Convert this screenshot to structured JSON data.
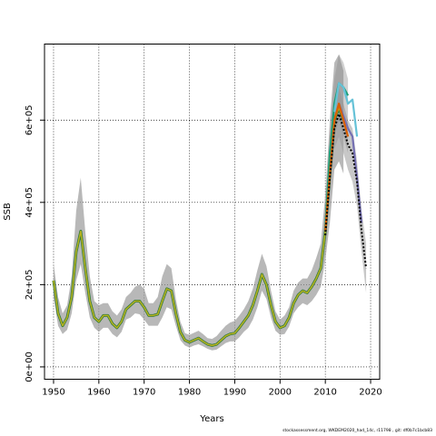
{
  "chart_data": {
    "type": "line",
    "xlabel": "Years",
    "ylabel": "SSB",
    "xlim": [
      1948,
      2022
    ],
    "ylim": [
      -30000,
      785000
    ],
    "x_ticks": [
      1950,
      1960,
      1970,
      1980,
      1990,
      2000,
      2010,
      2020
    ],
    "y_ticks": [
      0,
      200000,
      400000,
      600000
    ],
    "y_tick_labels": [
      "0e+00",
      "2e+05",
      "4e+05",
      "6e+05"
    ],
    "grid": true,
    "legend": "none",
    "base_run": {
      "x": [
        1950,
        1951,
        1952,
        1953,
        1954,
        1955,
        1956,
        1957,
        1958,
        1959,
        1960,
        1961,
        1962,
        1963,
        1964,
        1965,
        1966,
        1967,
        1968,
        1969,
        1970,
        1971,
        1972,
        1973,
        1974,
        1975,
        1976,
        1977,
        1978,
        1979,
        1980,
        1981,
        1982,
        1983,
        1984,
        1985,
        1986,
        1987,
        1988,
        1989,
        1990,
        1991,
        1992,
        1993,
        1994,
        1995,
        1996,
        1997,
        1998,
        1999,
        2000,
        2001,
        2002,
        2003,
        2004,
        2005,
        2006,
        2007,
        2008,
        2009,
        2010,
        2011,
        2012,
        2013,
        2014
      ],
      "y": [
        210000,
        130000,
        100000,
        120000,
        170000,
        280000,
        330000,
        240000,
        160000,
        120000,
        110000,
        125000,
        125000,
        105000,
        95000,
        110000,
        140000,
        150000,
        160000,
        160000,
        145000,
        125000,
        125000,
        128000,
        160000,
        190000,
        185000,
        130000,
        85000,
        65000,
        60000,
        65000,
        70000,
        62000,
        55000,
        52000,
        55000,
        65000,
        75000,
        80000,
        82000,
        95000,
        110000,
        125000,
        150000,
        185000,
        225000,
        200000,
        150000,
        110000,
        95000,
        100000,
        120000,
        155000,
        175000,
        185000,
        180000,
        195000,
        215000,
        240000,
        330000,
        470000,
        600000,
        630000,
        600000
      ],
      "upper": [
        250000,
        170000,
        130000,
        150000,
        220000,
        380000,
        460000,
        330000,
        220000,
        160000,
        150000,
        155000,
        155000,
        135000,
        125000,
        140000,
        170000,
        180000,
        195000,
        200000,
        190000,
        155000,
        155000,
        170000,
        220000,
        250000,
        240000,
        165000,
        110000,
        82000,
        78000,
        83000,
        88000,
        80000,
        70000,
        68000,
        75000,
        88000,
        100000,
        108000,
        112000,
        125000,
        140000,
        160000,
        190000,
        235000,
        275000,
        245000,
        185000,
        135000,
        115000,
        125000,
        145000,
        185000,
        205000,
        215000,
        215000,
        235000,
        265000,
        300000,
        420000,
        600000,
        740000,
        760000,
        720000
      ],
      "lower": [
        170000,
        100000,
        80000,
        90000,
        130000,
        210000,
        250000,
        180000,
        120000,
        95000,
        85000,
        95000,
        95000,
        80000,
        72000,
        85000,
        115000,
        120000,
        130000,
        128000,
        115000,
        100000,
        100000,
        100000,
        120000,
        145000,
        140000,
        100000,
        65000,
        52000,
        47000,
        52000,
        55000,
        50000,
        44000,
        40000,
        42000,
        50000,
        58000,
        62000,
        62000,
        72000,
        85000,
        95000,
        115000,
        145000,
        185000,
        165000,
        120000,
        88000,
        78000,
        80000,
        98000,
        130000,
        145000,
        155000,
        150000,
        160000,
        175000,
        195000,
        260000,
        350000,
        480000,
        500000,
        470000
      ]
    },
    "series": [
      {
        "name": "",
        "color": "#1b9e77",
        "x": [
          2010,
          2011,
          2012,
          2013,
          2014,
          2015
        ],
        "y": [
          340000,
          520000,
          640000,
          690000,
          680000,
          660000
        ]
      },
      {
        "name": "",
        "color": "#66c2d7",
        "x": [
          2012,
          2013,
          2014,
          2015,
          2016,
          2017
        ],
        "y": [
          620000,
          690000,
          680000,
          640000,
          650000,
          560000
        ]
      },
      {
        "name": "",
        "color": "#7570b3",
        "x": [
          2013,
          2014,
          2015,
          2016,
          2017,
          2018
        ],
        "y": [
          640000,
          610000,
          580000,
          560000,
          460000,
          350000
        ]
      },
      {
        "name": "",
        "color": "#d95f02",
        "x": [
          2010,
          2011,
          2012,
          2013,
          2014,
          2015
        ],
        "y": [
          330000,
          470000,
          600000,
          640000,
          600000,
          560000
        ]
      }
    ],
    "retro_dashed": {
      "x": [
        2010,
        2011,
        2012,
        2013,
        2014,
        2015,
        2016,
        2017,
        2018,
        2019
      ],
      "y": [
        320000,
        460000,
        580000,
        615000,
        580000,
        540000,
        520000,
        450000,
        330000,
        240000
      ],
      "upper": [
        350000,
        510000,
        640000,
        680000,
        640000,
        600000,
        580000,
        500000,
        380000,
        300000
      ],
      "lower": [
        290000,
        420000,
        530000,
        560000,
        520000,
        480000,
        450000,
        390000,
        280000,
        180000
      ]
    },
    "green_band": {
      "x": [
        2010,
        2011,
        2012,
        2013,
        2014,
        2015
      ],
      "upper": [
        360000,
        560000,
        700000,
        760000,
        740000,
        700000
      ],
      "lower": [
        300000,
        440000,
        560000,
        600000,
        560000,
        520000
      ]
    }
  },
  "footer_text": "stockassessment.org, WKDEM2020_had_14c, r11798 , git: df0b7c1bcb83"
}
